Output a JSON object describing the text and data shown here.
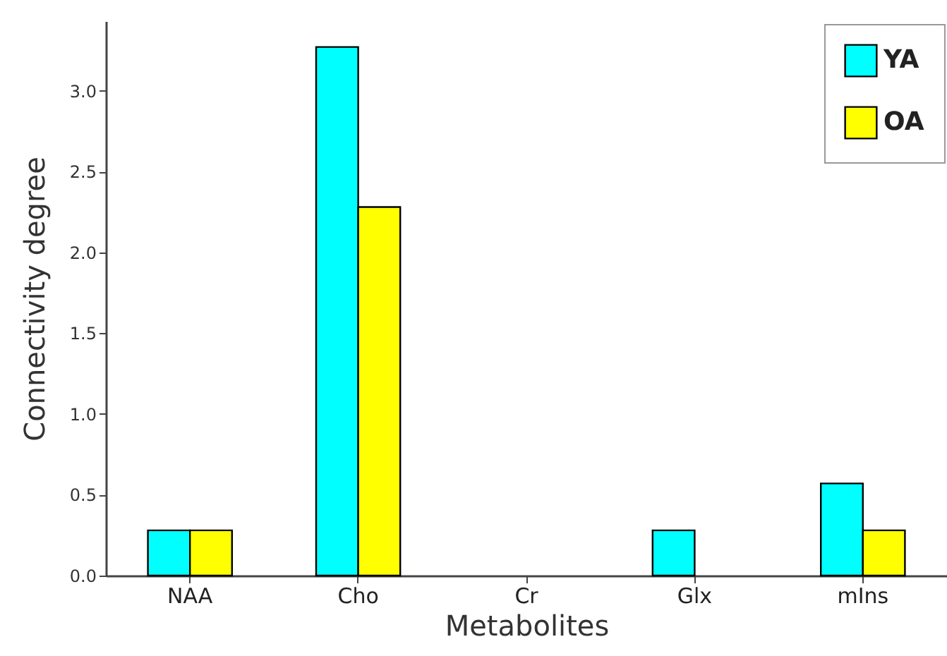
{
  "chart_data": {
    "type": "bar",
    "xlabel": "Metabolites",
    "ylabel": "Connectivity degree",
    "categories": [
      "NAA",
      "Cho",
      "Cr",
      "Glx",
      "mIns"
    ],
    "series": [
      {
        "name": "YA",
        "color": "#00ffff",
        "values": [
          0.28,
          3.27,
          0,
          0.28,
          0.57
        ]
      },
      {
        "name": "OA",
        "color": "#ffff00",
        "values": [
          0.28,
          2.28,
          0,
          0,
          0.28
        ]
      }
    ],
    "ylim": [
      0,
      3.43
    ],
    "yticks": [
      {
        "value": 0,
        "label": "0.0"
      },
      0.5,
      {
        "value": 1,
        "label": "1.0"
      },
      1.5,
      {
        "value": 2,
        "label": "2.0"
      },
      2.5,
      {
        "value": 3,
        "label": "3.0"
      }
    ],
    "grid": false,
    "legend": "top right"
  }
}
